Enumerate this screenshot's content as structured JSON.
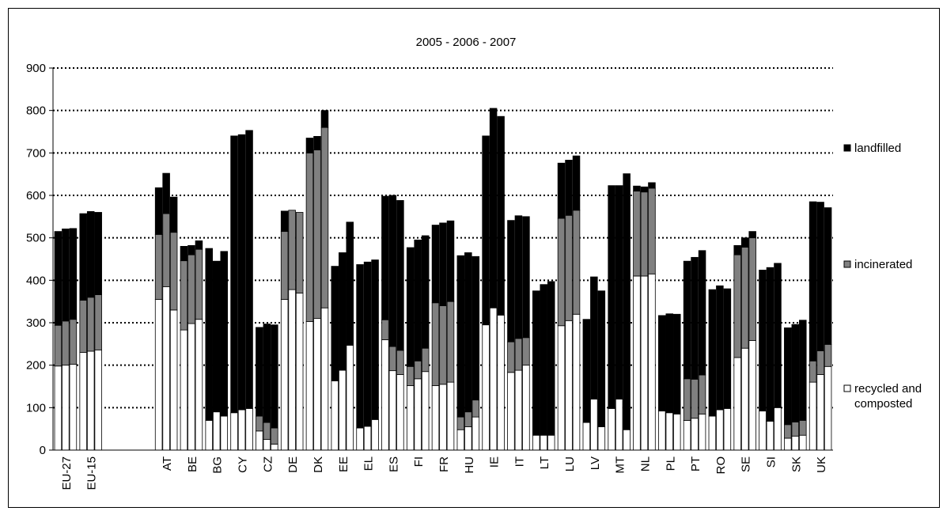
{
  "chart_data": {
    "type": "bar",
    "stacked": true,
    "title": "2005 - 2006 - 2007",
    "xlabel": "",
    "ylabel": "",
    "ylim": [
      0,
      900
    ],
    "yticks": [
      0,
      100,
      200,
      300,
      400,
      500,
      600,
      700,
      800,
      900
    ],
    "grid": "horizontal dotted",
    "legend_position": "right",
    "years": [
      "2005",
      "2006",
      "2007"
    ],
    "categories": [
      "EU-27",
      "EU-15",
      "AT",
      "BE",
      "BG",
      "CY",
      "CZ",
      "DE",
      "DK",
      "EE",
      "EL",
      "ES",
      "FI",
      "FR",
      "HU",
      "IE",
      "IT",
      "LT",
      "LU",
      "LV",
      "MT",
      "NL",
      "PL",
      "PT",
      "RO",
      "SE",
      "SI",
      "SK",
      "UK"
    ],
    "colors": {
      "recycled": "#ffffff",
      "incinerated": "#808080",
      "landfilled": "#000000",
      "grid": "#000000",
      "axis": "#000000"
    },
    "series": [
      {
        "name": "recycled and composted",
        "legend_lines": [
          "recycled and",
          "composted"
        ],
        "values": [
          [
            198,
            200,
            202
          ],
          [
            230,
            233,
            236
          ],
          [
            355,
            385,
            330
          ],
          [
            283,
            298,
            308
          ],
          [
            70,
            90,
            80
          ],
          [
            88,
            95,
            98
          ],
          [
            45,
            25,
            14
          ],
          [
            355,
            378,
            370
          ],
          [
            303,
            310,
            335
          ],
          [
            163,
            188,
            247
          ],
          [
            52,
            56,
            72
          ],
          [
            260,
            187,
            178
          ],
          [
            152,
            168,
            185
          ],
          [
            152,
            155,
            160
          ],
          [
            48,
            55,
            78
          ],
          [
            295,
            335,
            318
          ],
          [
            183,
            188,
            200
          ],
          [
            35,
            35,
            35
          ],
          [
            293,
            305,
            320
          ],
          [
            65,
            120,
            55
          ],
          [
            98,
            120,
            48
          ],
          [
            410,
            410,
            415
          ],
          [
            92,
            88,
            85
          ],
          [
            70,
            75,
            85
          ],
          [
            80,
            95,
            98
          ],
          [
            218,
            240,
            258
          ],
          [
            92,
            68,
            100
          ],
          [
            28,
            33,
            35
          ],
          [
            160,
            178,
            197
          ]
        ]
      },
      {
        "name": "incinerated",
        "values": [
          [
            96,
            104,
            106
          ],
          [
            123,
            127,
            130
          ],
          [
            153,
            172,
            183
          ],
          [
            163,
            162,
            165
          ],
          [
            0,
            0,
            0
          ],
          [
            0,
            0,
            0
          ],
          [
            35,
            40,
            38
          ],
          [
            160,
            187,
            190
          ],
          [
            397,
            397,
            425
          ],
          [
            0,
            0,
            0
          ],
          [
            0,
            0,
            0
          ],
          [
            47,
            57,
            57
          ],
          [
            45,
            42,
            55
          ],
          [
            195,
            185,
            190
          ],
          [
            30,
            35,
            40
          ],
          [
            0,
            0,
            0
          ],
          [
            72,
            75,
            65
          ],
          [
            0,
            0,
            0
          ],
          [
            253,
            248,
            245
          ],
          [
            0,
            0,
            0
          ],
          [
            0,
            0,
            0
          ],
          [
            200,
            198,
            202
          ],
          [
            0,
            0,
            0
          ],
          [
            98,
            92,
            92
          ],
          [
            0,
            0,
            0
          ],
          [
            242,
            238,
            242
          ],
          [
            0,
            0,
            0
          ],
          [
            32,
            33,
            35
          ],
          [
            50,
            56,
            52
          ]
        ]
      },
      {
        "name": "landfilled",
        "values": [
          [
            221,
            217,
            214
          ],
          [
            204,
            202,
            194
          ],
          [
            110,
            95,
            83
          ],
          [
            34,
            22,
            20
          ],
          [
            405,
            355,
            388
          ],
          [
            652,
            648,
            655
          ],
          [
            209,
            232,
            243
          ],
          [
            48,
            0,
            0
          ],
          [
            35,
            32,
            40
          ],
          [
            270,
            277,
            290
          ],
          [
            385,
            387,
            376
          ],
          [
            291,
            356,
            353
          ],
          [
            280,
            285,
            265
          ],
          [
            183,
            195,
            190
          ],
          [
            380,
            375,
            338
          ],
          [
            445,
            470,
            468
          ],
          [
            286,
            289,
            285
          ],
          [
            340,
            355,
            362
          ],
          [
            130,
            130,
            128
          ],
          [
            243,
            288,
            320
          ],
          [
            525,
            503,
            603
          ],
          [
            12,
            12,
            13
          ],
          [
            225,
            233,
            235
          ],
          [
            277,
            287,
            293
          ],
          [
            298,
            292,
            282
          ],
          [
            22,
            22,
            15
          ],
          [
            332,
            362,
            340
          ],
          [
            228,
            230,
            236
          ],
          [
            375,
            350,
            322
          ]
        ]
      }
    ]
  }
}
